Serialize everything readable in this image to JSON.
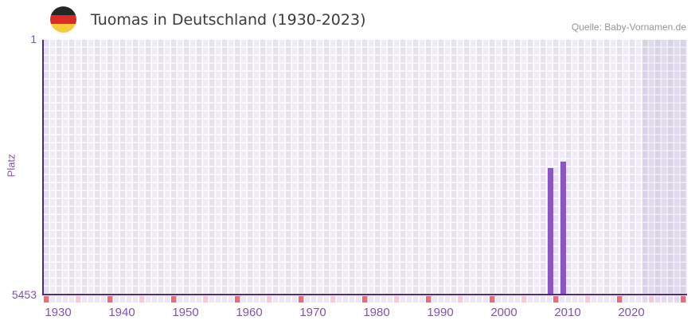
{
  "header": {
    "title": "Tuomas in Deutschland (1930-2023)",
    "source": "Quelle: Baby-Vornamen.de",
    "flag_icon": "german-flag-icon"
  },
  "chart_data": {
    "type": "bar",
    "title": "Tuomas in Deutschland (1930-2023)",
    "ylabel": "Platz",
    "y_axis": {
      "top_label": "1",
      "bottom_label": "5453",
      "min": 1,
      "max": 5453,
      "inverted": true
    },
    "x_axis": {
      "plot_year_start": 1930,
      "plot_year_end": 2030,
      "data_year_start": 1930,
      "data_year_end": 2023,
      "tick_years": [
        1930,
        1940,
        1950,
        1960,
        1970,
        1980,
        1990,
        2000,
        2010,
        2020
      ],
      "tick_labels": [
        "1930",
        "1940",
        "1950",
        "1960",
        "1970",
        "1980",
        "1990",
        "2000",
        "2010",
        "2020"
      ]
    },
    "series": [
      {
        "name": "Platz",
        "bars": [
          {
            "year": 2009,
            "rank": 2745
          },
          {
            "year": 2011,
            "rank": 2610
          }
        ]
      }
    ],
    "axis_strip_markers": {
      "red_interval_years": 10,
      "pink_interval_years": 5
    },
    "grid": "checkerboard, 1 column per year",
    "legend": "none"
  },
  "colors": {
    "bar": "#8b57c6",
    "axis_line": "#53278a",
    "axis_text": "#7d55ad",
    "title_text": "#3b3b3b",
    "source_text": "#969696",
    "grid_col_dark": "#e7e1f4",
    "grid_col_light": "#f0ebf9",
    "future_overlay": "rgba(99,86,135,0.10)",
    "strip_cell": "#ece7f6",
    "strip_cell_future": "#e2dbee",
    "marker_red": "#e56e7c",
    "marker_pink": "#f3ccd8",
    "flag_black": "#262626",
    "flag_red": "#da2b27",
    "flag_gold": "#f8c940"
  }
}
